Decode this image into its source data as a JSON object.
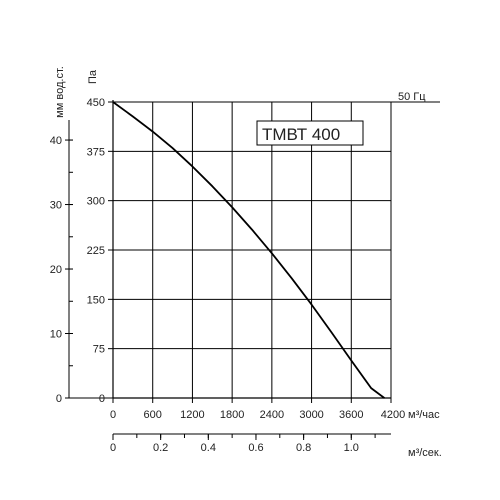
{
  "chart_data": {
    "type": "line",
    "title": "",
    "model_label": "ТМВТ 400",
    "frequency_label": "50 Гц",
    "x_axis": {
      "label": "м³/час",
      "range": [
        0,
        4200
      ],
      "ticks": [
        0,
        600,
        1200,
        1800,
        2400,
        3000,
        3600,
        4200
      ],
      "tick_labels": [
        "0",
        "600",
        "1200",
        "1800",
        "2400",
        "3000",
        "3600",
        "4200"
      ],
      "grid": true
    },
    "x2_axis": {
      "label": "м³/сек.",
      "range": [
        0,
        1.1667
      ],
      "ticks": [
        0,
        0.2,
        0.4,
        0.6,
        0.8,
        1.0
      ],
      "tick_labels": [
        "0",
        "0.2",
        "0.4",
        "0.6",
        "0.8",
        "1.0"
      ],
      "minor_step": 0.1
    },
    "y_axis": {
      "label": "Па",
      "range": [
        0,
        450
      ],
      "ticks": [
        0,
        75,
        150,
        225,
        300,
        375,
        450
      ],
      "tick_labels": [
        "0",
        "75",
        "150",
        "225",
        "300",
        "375",
        "450"
      ],
      "grid": true
    },
    "y2_axis": {
      "label": "мм вод.ст.",
      "range": [
        0,
        45.9
      ],
      "ticks": [
        0,
        10,
        20,
        30,
        40
      ],
      "tick_labels": [
        "0",
        "10",
        "20",
        "30",
        "40"
      ],
      "minor_step": 5
    },
    "series": [
      {
        "color": "#000000",
        "x": [
          0,
          300,
          600,
          900,
          1200,
          1500,
          1800,
          2100,
          2400,
          2700,
          3000,
          3300,
          3600,
          3900,
          4100
        ],
        "y": [
          450,
          428,
          405,
          380,
          352,
          322,
          290,
          256,
          220,
          182,
          142,
          100,
          57,
          15,
          0
        ]
      }
    ]
  }
}
